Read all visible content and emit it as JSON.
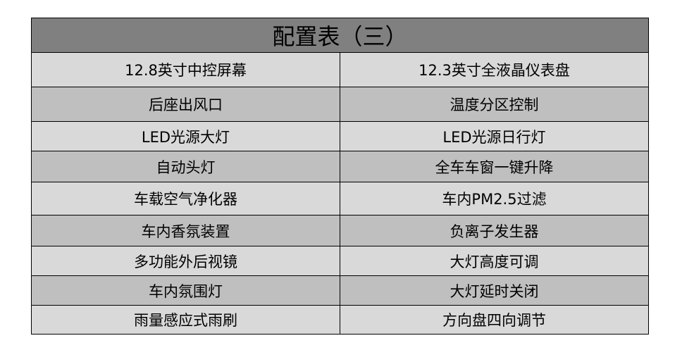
{
  "title": "配置表（三）",
  "colors": {
    "title_bg": "#808080",
    "row_light": "#d9d9d9",
    "row_dark": "#bfbfbf"
  },
  "rows": [
    [
      "12.8英寸中控屏幕",
      "12.3英寸全液晶仪表盘"
    ],
    [
      "后座出风口",
      "温度分区控制"
    ],
    [
      "LED光源大灯",
      "LED光源日行灯"
    ],
    [
      "自动头灯",
      "全车车窗一键升降"
    ],
    [
      "车载空气净化器",
      "车内PM2.5过滤"
    ],
    [
      "车内香氛装置",
      "负离子发生器"
    ],
    [
      "多功能外后视镜",
      "大灯高度可调"
    ],
    [
      "车内氛围灯",
      "大灯延时关闭"
    ],
    [
      "雨量感应式雨刷",
      "方向盘四向调节"
    ]
  ]
}
